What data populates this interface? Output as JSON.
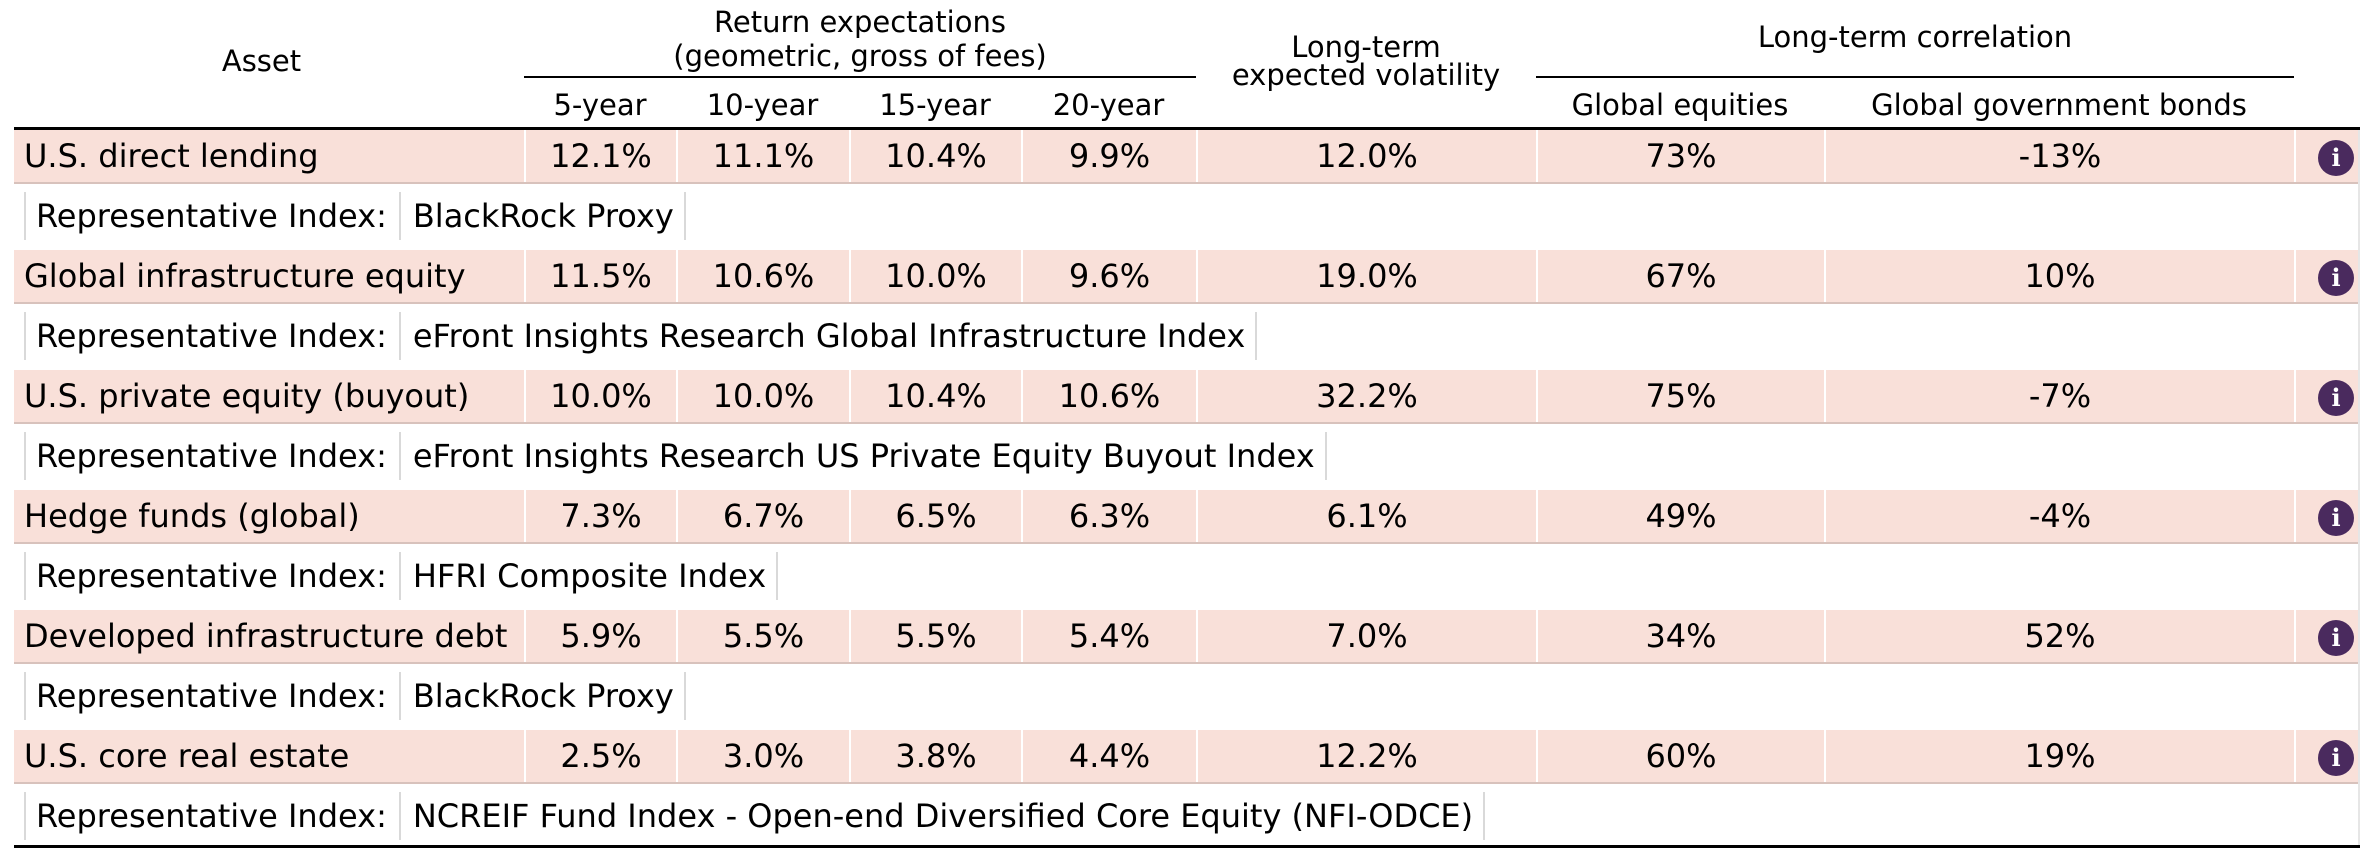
{
  "header": {
    "asset": "Asset",
    "return_title_line1": "Return expectations",
    "return_title_line2": "(geometric, gross of fees)",
    "vol_line1": "Long-term",
    "vol_line2": "expected volatility",
    "corr_title": "Long-term correlation",
    "sub_5": "5-year",
    "sub_10": "10-year",
    "sub_15": "15-year",
    "sub_20": "20-year",
    "sub_ge": "Global equities",
    "sub_gg": "Global government bonds"
  },
  "index_prefix": "Representative Index:",
  "rows": [
    {
      "asset": "U.S. direct lending",
      "y5": "12.1%",
      "y10": "11.1%",
      "y15": "10.4%",
      "y20": "9.9%",
      "vol": "12.0%",
      "ge": "73%",
      "gg": "-13%",
      "index": "BlackRock Proxy"
    },
    {
      "asset": "Global infrastructure equity",
      "y5": "11.5%",
      "y10": "10.6%",
      "y15": "10.0%",
      "y20": "9.6%",
      "vol": "19.0%",
      "ge": "67%",
      "gg": "10%",
      "index": "eFront Insights Research Global Infrastructure Index"
    },
    {
      "asset": "U.S. private equity (buyout)",
      "y5": "10.0%",
      "y10": "10.0%",
      "y15": "10.4%",
      "y20": "10.6%",
      "vol": "32.2%",
      "ge": "75%",
      "gg": "-7%",
      "index": "eFront Insights Research US Private Equity Buyout Index"
    },
    {
      "asset": "Hedge funds (global)",
      "y5": "7.3%",
      "y10": "6.7%",
      "y15": "6.5%",
      "y20": "6.3%",
      "vol": "6.1%",
      "ge": "49%",
      "gg": "-4%",
      "index": "HFRI Composite Index"
    },
    {
      "asset": "Developed infrastructure debt",
      "y5": "5.9%",
      "y10": "5.5%",
      "y15": "5.5%",
      "y20": "5.4%",
      "vol": "7.0%",
      "ge": "34%",
      "gg": "52%",
      "index": "BlackRock Proxy"
    },
    {
      "asset": "U.S. core real estate",
      "y5": "2.5%",
      "y10": "3.0%",
      "y15": "3.8%",
      "y20": "4.4%",
      "vol": "12.2%",
      "ge": "60%",
      "gg": "19%",
      "index": "NCREIF Fund Index - Open-end Diversified Core Equity (NFI-ODCE)"
    }
  ],
  "info_icon": "info-icon",
  "colors": {
    "row_bg": "#f9e0d9",
    "icon_bg": "#4a2a5e"
  }
}
